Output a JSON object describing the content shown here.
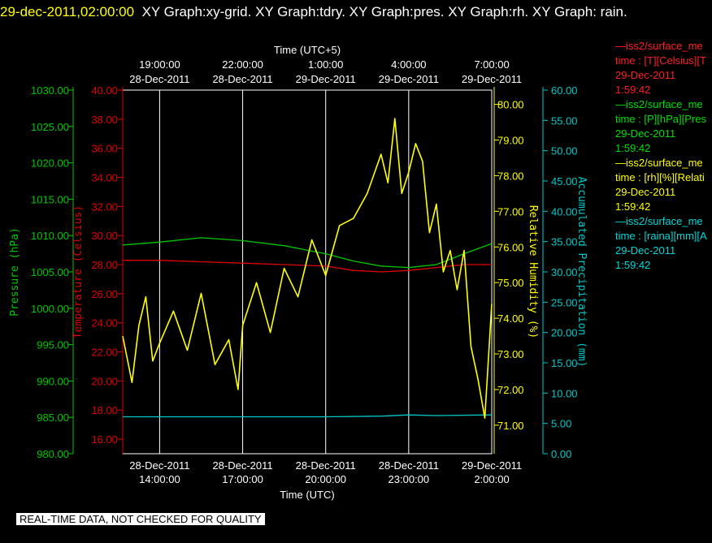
{
  "header": {
    "timestamp": "29-dec-2011,02:00:00",
    "rest": "XY Graph:xy-grid.  XY Graph:tdry.  XY Graph:pres.  XY Graph:rh.  XY Graph: rain."
  },
  "footer": "REAL-TIME DATA, NOT CHECKED FOR QUALITY",
  "colors": {
    "pres": "#00c800",
    "temp": "#e00000",
    "rh": "#ffff00",
    "rain": "#00c8c8",
    "grid": "#ffffff"
  },
  "legend": [
    {
      "line": "—iss2/surface_me",
      "desc": "time : [T][Celsius][T",
      "date": "29-Dec-2011",
      "time": "1:59:42",
      "color": "#ff2020"
    },
    {
      "line": "—iss2/surface_me",
      "desc": "time : [P][hPa][Pres",
      "date": "29-Dec-2011",
      "time": "1:59:42",
      "color": "#00e000"
    },
    {
      "line": "—iss2/surface_me",
      "desc": "time : [rh][%][Relati",
      "date": "29-Dec-2011",
      "time": "1:59:42",
      "color": "#ffff00"
    },
    {
      "line": "—iss2/surface_me",
      "desc": "time : [raina][mm][A",
      "date": "29-Dec-2011",
      "time": "1:59:42",
      "color": "#00d8d8"
    }
  ],
  "chart_data": {
    "type": "line",
    "x_range": [
      "2011-12-28 12:40",
      "2011-12-29 02:00"
    ],
    "x_unit": "hours UTC",
    "xlabel_bottom": "Time (UTC)",
    "xlabel_top": "Time (UTC+5)",
    "bottom_ticks": [
      {
        "x": "2011-12-28 14:00",
        "d": "28-Dec-2011",
        "t": "14:00:00"
      },
      {
        "x": "2011-12-28 17:00",
        "d": "28-Dec-2011",
        "t": "17:00:00"
      },
      {
        "x": "2011-12-28 20:00",
        "d": "28-Dec-2011",
        "t": "20:00:00"
      },
      {
        "x": "2011-12-28 23:00",
        "d": "28-Dec-2011",
        "t": "23:00:00"
      },
      {
        "x": "2011-12-29 02:00",
        "d": "29-Dec-2011",
        "t": "2:00:00"
      }
    ],
    "top_ticks": [
      {
        "x": "2011-12-28 14:00",
        "t": "19:00:00",
        "d": "28-Dec-2011"
      },
      {
        "x": "2011-12-28 17:00",
        "t": "22:00:00",
        "d": "28-Dec-2011"
      },
      {
        "x": "2011-12-28 20:00",
        "t": "1:00:00",
        "d": "29-Dec-2011"
      },
      {
        "x": "2011-12-28 23:00",
        "t": "4:00:00",
        "d": "29-Dec-2011"
      },
      {
        "x": "2011-12-29 02:00",
        "t": "7:00:00",
        "d": "29-Dec-2011"
      }
    ],
    "axes": {
      "pres": {
        "label": "Pressure (hPa)",
        "ylim": [
          980,
          1030
        ],
        "ticks": [
          "980.00",
          "985.00",
          "990.00",
          "995.00",
          "1000.00",
          "1005.00",
          "1010.00",
          "1015.00",
          "1020.00",
          "1025.00",
          "1030.00"
        ]
      },
      "temp": {
        "label": "Temperature (Celsius)",
        "ylim": [
          15,
          40
        ],
        "ticks": [
          "16.00",
          "18.00",
          "20.00",
          "22.00",
          "24.00",
          "26.00",
          "28.00",
          "30.00",
          "32.00",
          "34.00",
          "36.00",
          "38.00",
          "40.00"
        ]
      },
      "rh": {
        "label": "Relative Humidity (%)",
        "ylim": [
          70.2,
          80.4
        ],
        "ticks": [
          "71.00",
          "72.00",
          "73.00",
          "74.00",
          "75.00",
          "76.00",
          "77.00",
          "78.00",
          "79.00",
          "80.00"
        ]
      },
      "rain": {
        "label": "Accumulated Precipitation (mm)",
        "ylim": [
          0,
          60
        ],
        "ticks": [
          "0.00",
          "5.00",
          "10.00",
          "15.00",
          "20.00",
          "25.00",
          "30.00",
          "35.00",
          "40.00",
          "45.00",
          "50.00",
          "55.00",
          "60.00"
        ]
      }
    },
    "series": [
      {
        "name": "pres",
        "x": [
          "12:40",
          "14:00",
          "15:30",
          "17:00",
          "18:30",
          "20:00",
          "21:00",
          "22:00",
          "23:00",
          "24:00",
          "25:00",
          "26:00"
        ],
        "values": [
          1008.7,
          1009.1,
          1009.7,
          1009.3,
          1008.6,
          1007.5,
          1006.5,
          1005.8,
          1005.6,
          1006.0,
          1007.5,
          1008.9
        ]
      },
      {
        "name": "temp",
        "x": [
          "12:40",
          "14:00",
          "15:30",
          "17:00",
          "18:30",
          "20:00",
          "21:00",
          "22:00",
          "23:00",
          "24:00",
          "25:00",
          "26:00"
        ],
        "values": [
          28.3,
          28.3,
          28.2,
          28.1,
          28.0,
          27.9,
          27.6,
          27.5,
          27.6,
          27.8,
          28.0,
          28.0
        ]
      },
      {
        "name": "rain",
        "x": [
          "12:40",
          "20:00",
          "22:00",
          "23:00",
          "24:00",
          "26:00"
        ],
        "values": [
          6.1,
          6.1,
          6.2,
          6.4,
          6.3,
          6.4
        ]
      },
      {
        "name": "rh",
        "x": [
          "12:40",
          "13:00",
          "13:15",
          "13:30",
          "13:45",
          "14:00",
          "14:30",
          "15:00",
          "15:30",
          "16:00",
          "16:30",
          "16:50",
          "17:00",
          "17:30",
          "18:00",
          "18:30",
          "19:00",
          "19:30",
          "20:00",
          "20:30",
          "21:00",
          "21:30",
          "22:00",
          "22:15",
          "22:30",
          "22:45",
          "23:00",
          "23:15",
          "23:30",
          "23:45",
          "24:00",
          "24:15",
          "24:30",
          "24:45",
          "25:00",
          "25:15",
          "25:30",
          "25:45",
          "26:00"
        ],
        "values": [
          73.5,
          72.2,
          73.8,
          74.6,
          72.8,
          73.3,
          74.2,
          73.1,
          74.7,
          72.7,
          73.4,
          72.0,
          73.8,
          75.0,
          73.6,
          75.4,
          74.6,
          76.2,
          75.2,
          76.6,
          76.8,
          77.5,
          78.6,
          77.8,
          79.6,
          77.5,
          78.1,
          78.9,
          78.4,
          76.4,
          77.2,
          75.3,
          75.9,
          74.8,
          75.9,
          73.2,
          72.3,
          71.2,
          74.4
        ]
      }
    ]
  }
}
